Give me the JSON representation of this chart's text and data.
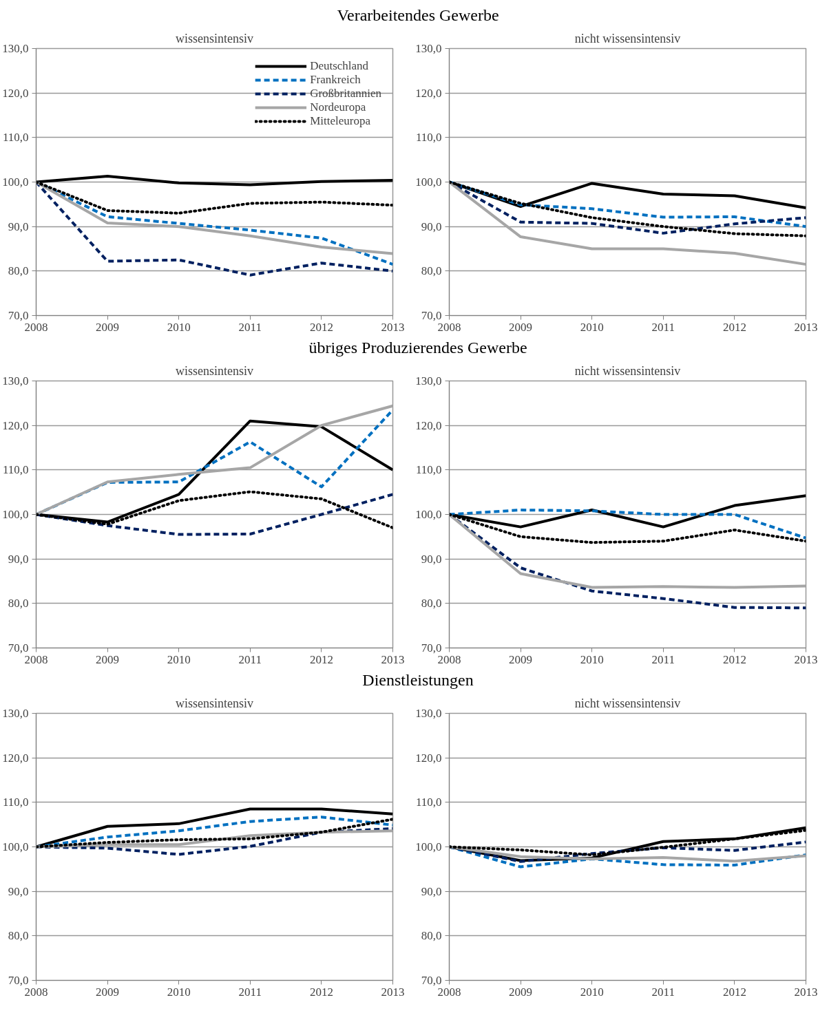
{
  "chart_data": [
    {
      "type": "line",
      "title": "Verarbeitendes Gewerbe",
      "subtitle": "wissensintensiv",
      "x": [
        2008,
        2009,
        2010,
        2011,
        2012,
        2013
      ],
      "xlim": [
        2008,
        2013
      ],
      "xticks": [
        2008,
        2009,
        2010,
        2011,
        2012,
        2013
      ],
      "ylim": [
        70,
        130
      ],
      "yticks": [
        {
          "value": 70,
          "label": "70,0"
        },
        {
          "value": 80,
          "label": "80,0"
        },
        {
          "value": 90,
          "label": "90,0"
        },
        {
          "value": 100,
          "label": "100,0"
        },
        {
          "value": 110,
          "label": "110,0"
        },
        {
          "value": 120,
          "label": "120,0"
        },
        {
          "value": 130,
          "label": "130,0"
        }
      ],
      "grid": "y",
      "legend": "top right",
      "series": [
        {
          "name": "Deutschland",
          "color": "#000000",
          "line_style": "solid",
          "values": [
            100,
            101.3,
            99.8,
            99.4,
            100.1,
            100.4
          ]
        },
        {
          "name": "Frankreich",
          "color": "#0070c0",
          "line_style": "dashed",
          "values": [
            100,
            92.2,
            90.7,
            89.2,
            87.4,
            81.5
          ]
        },
        {
          "name": "Großbritannien",
          "color": "#002060",
          "line_style": "dashed",
          "values": [
            100,
            82.2,
            82.5,
            79.1,
            81.8,
            80.0
          ]
        },
        {
          "name": "Nordeuropa",
          "color": "#a6a6a6",
          "line_style": "solid",
          "values": [
            100,
            90.8,
            90.0,
            87.9,
            85.4,
            83.9
          ]
        },
        {
          "name": "Mitteleuropa",
          "color": "#000000",
          "line_style": "dotted",
          "values": [
            100,
            93.6,
            93.0,
            95.2,
            95.5,
            94.8
          ]
        }
      ]
    },
    {
      "type": "line",
      "subtitle": "nicht wissensintensiv",
      "x": [
        2008,
        2009,
        2010,
        2011,
        2012,
        2013
      ],
      "xlim": [
        2008,
        2013
      ],
      "xticks": [
        2008,
        2009,
        2010,
        2011,
        2012,
        2013
      ],
      "ylim": [
        70,
        130
      ],
      "yticks": [
        {
          "value": 70,
          "label": "70,0"
        },
        {
          "value": 80,
          "label": "80,0"
        },
        {
          "value": 90,
          "label": "90,0"
        },
        {
          "value": 100,
          "label": "100,0"
        },
        {
          "value": 110,
          "label": "110,0"
        },
        {
          "value": 120,
          "label": "120,0"
        },
        {
          "value": 130,
          "label": "130,0"
        }
      ],
      "grid": "y",
      "series": [
        {
          "color": "#000000",
          "line_style": "solid",
          "values": [
            100,
            94.5,
            99.7,
            97.3,
            96.9,
            94.2
          ]
        },
        {
          "color": "#0070c0",
          "line_style": "dashed",
          "values": [
            100,
            94.9,
            94.0,
            92.1,
            92.2,
            90.0
          ]
        },
        {
          "color": "#002060",
          "line_style": "dashed",
          "values": [
            100,
            91.0,
            90.7,
            88.5,
            90.6,
            92.0
          ]
        },
        {
          "color": "#a6a6a6",
          "line_style": "solid",
          "values": [
            100,
            87.7,
            85.0,
            85.0,
            84.0,
            81.5
          ]
        },
        {
          "color": "#000000",
          "line_style": "dotted",
          "values": [
            100,
            95.2,
            92.0,
            90.0,
            88.4,
            87.9
          ]
        }
      ]
    },
    {
      "type": "line",
      "title": "übriges Produzierendes Gewerbe",
      "subtitle": "wissensintensiv",
      "x": [
        2008,
        2009,
        2010,
        2011,
        2012,
        2013
      ],
      "xlim": [
        2008,
        2013
      ],
      "xticks": [
        2008,
        2009,
        2010,
        2011,
        2012,
        2013
      ],
      "ylim": [
        70,
        130
      ],
      "yticks": [
        {
          "value": 70,
          "label": "70,0"
        },
        {
          "value": 80,
          "label": "80,0"
        },
        {
          "value": 90,
          "label": "90,0"
        },
        {
          "value": 100,
          "label": "100,0"
        },
        {
          "value": 110,
          "label": "110,0"
        },
        {
          "value": 120,
          "label": "120,0"
        },
        {
          "value": 130,
          "label": "130,0"
        }
      ],
      "grid": "y",
      "series": [
        {
          "color": "#000000",
          "line_style": "solid",
          "values": [
            100,
            98.3,
            104.5,
            121.0,
            119.7,
            110.0
          ]
        },
        {
          "color": "#0070c0",
          "line_style": "dashed",
          "values": [
            100,
            107.2,
            107.3,
            116.3,
            106.2,
            123.5
          ]
        },
        {
          "color": "#002060",
          "line_style": "dashed",
          "values": [
            100,
            97.5,
            95.5,
            95.6,
            100.0,
            104.5
          ]
        },
        {
          "color": "#a6a6a6",
          "line_style": "solid",
          "values": [
            100,
            107.3,
            109.0,
            110.5,
            120.0,
            124.4
          ]
        },
        {
          "color": "#000000",
          "line_style": "dotted",
          "values": [
            100,
            97.8,
            103.1,
            105.1,
            103.5,
            97.0
          ]
        }
      ]
    },
    {
      "type": "line",
      "subtitle": "nicht wissensintensiv",
      "x": [
        2008,
        2009,
        2010,
        2011,
        2012,
        2013
      ],
      "xlim": [
        2008,
        2013
      ],
      "xticks": [
        2008,
        2009,
        2010,
        2011,
        2012,
        2013
      ],
      "ylim": [
        70,
        130
      ],
      "yticks": [
        {
          "value": 70,
          "label": "70,0"
        },
        {
          "value": 80,
          "label": "80,0"
        },
        {
          "value": 90,
          "label": "90,0"
        },
        {
          "value": 100,
          "label": "100,0"
        },
        {
          "value": 110,
          "label": "110,0"
        },
        {
          "value": 120,
          "label": "120,0"
        },
        {
          "value": 130,
          "label": "130,0"
        }
      ],
      "grid": "y",
      "series": [
        {
          "color": "#000000",
          "line_style": "solid",
          "values": [
            100,
            97.2,
            101.0,
            97.2,
            102.0,
            104.2
          ]
        },
        {
          "color": "#0070c0",
          "line_style": "dashed",
          "values": [
            100,
            101.0,
            100.8,
            100.0,
            100.0,
            94.7
          ]
        },
        {
          "color": "#002060",
          "line_style": "dashed",
          "values": [
            100,
            88.0,
            82.8,
            81.1,
            79.1,
            79.0
          ]
        },
        {
          "color": "#a6a6a6",
          "line_style": "solid",
          "values": [
            100,
            86.7,
            83.6,
            83.8,
            83.6,
            83.9
          ]
        },
        {
          "color": "#000000",
          "line_style": "dotted",
          "values": [
            100,
            95.0,
            93.7,
            94.0,
            96.5,
            94.0
          ]
        }
      ]
    },
    {
      "type": "line",
      "title": "Dienstleistungen",
      "subtitle": "wissensintensiv",
      "x": [
        2008,
        2009,
        2010,
        2011,
        2012,
        2013
      ],
      "xlim": [
        2008,
        2013
      ],
      "xticks": [
        2008,
        2009,
        2010,
        2011,
        2012,
        2013
      ],
      "ylim": [
        70,
        130
      ],
      "yticks": [
        {
          "value": 70,
          "label": "70,0"
        },
        {
          "value": 80,
          "label": "80,0"
        },
        {
          "value": 90,
          "label": "90,0"
        },
        {
          "value": 100,
          "label": "100,0"
        },
        {
          "value": 110,
          "label": "110,0"
        },
        {
          "value": 120,
          "label": "120,0"
        },
        {
          "value": 130,
          "label": "130,0"
        }
      ],
      "grid": "y",
      "series": [
        {
          "color": "#000000",
          "line_style": "solid",
          "values": [
            100,
            104.6,
            105.2,
            108.5,
            108.5,
            107.4
          ]
        },
        {
          "color": "#0070c0",
          "line_style": "dashed",
          "values": [
            100,
            102.2,
            103.6,
            105.7,
            106.7,
            104.9
          ]
        },
        {
          "color": "#002060",
          "line_style": "dashed",
          "values": [
            100,
            99.7,
            98.3,
            100.1,
            103.3,
            104.1
          ]
        },
        {
          "color": "#a6a6a6",
          "line_style": "solid",
          "values": [
            100,
            100.5,
            100.5,
            102.5,
            103.3,
            103.6
          ]
        },
        {
          "color": "#000000",
          "line_style": "dotted",
          "values": [
            100,
            101.0,
            101.6,
            101.8,
            103.3,
            106.2
          ]
        }
      ]
    },
    {
      "type": "line",
      "subtitle": "nicht wissensintensiv",
      "x": [
        2008,
        2009,
        2010,
        2011,
        2012,
        2013
      ],
      "xlim": [
        2008,
        2013
      ],
      "xticks": [
        2008,
        2009,
        2010,
        2011,
        2012,
        2013
      ],
      "ylim": [
        70,
        130
      ],
      "yticks": [
        {
          "value": 70,
          "label": "70,0"
        },
        {
          "value": 80,
          "label": "80,0"
        },
        {
          "value": 90,
          "label": "90,0"
        },
        {
          "value": 100,
          "label": "100,0"
        },
        {
          "value": 110,
          "label": "110,0"
        },
        {
          "value": 120,
          "label": "120,0"
        },
        {
          "value": 130,
          "label": "130,0"
        }
      ],
      "grid": "y",
      "series": [
        {
          "color": "#000000",
          "line_style": "solid",
          "values": [
            100,
            96.9,
            97.5,
            101.2,
            101.8,
            104.3
          ]
        },
        {
          "color": "#0070c0",
          "line_style": "dashed",
          "values": [
            100,
            95.5,
            97.3,
            96.0,
            95.9,
            98.2
          ]
        },
        {
          "color": "#002060",
          "line_style": "dashed",
          "values": [
            100,
            96.7,
            98.5,
            99.8,
            99.2,
            101.1
          ]
        },
        {
          "color": "#a6a6a6",
          "line_style": "solid",
          "values": [
            100,
            97.8,
            97.3,
            97.6,
            96.8,
            98.0
          ]
        },
        {
          "color": "#000000",
          "line_style": "dotted",
          "values": [
            100,
            99.3,
            98.2,
            99.9,
            101.8,
            103.7
          ]
        }
      ]
    }
  ]
}
